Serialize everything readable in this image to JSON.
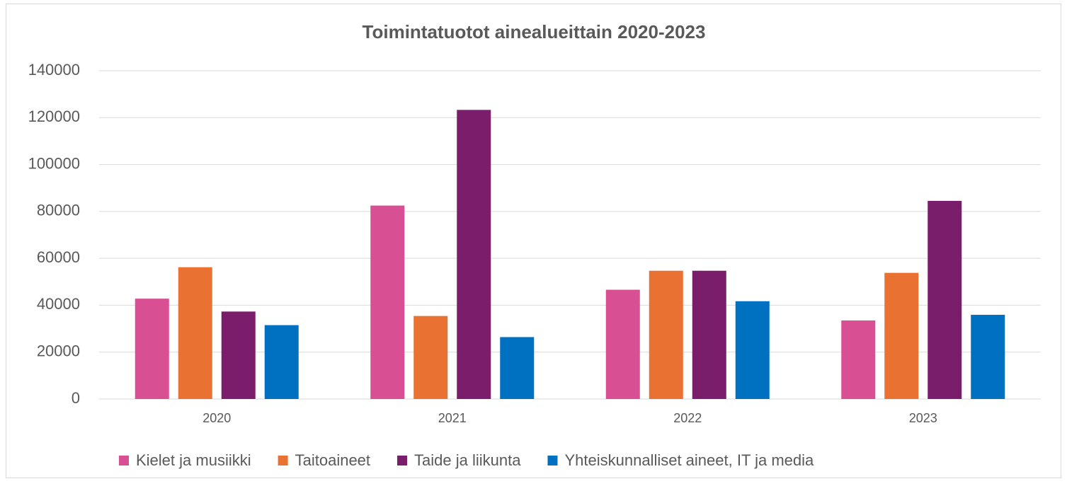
{
  "chart_data": {
    "type": "bar",
    "title": "Toimintatuotot ainealueittain 2020-2023",
    "categories": [
      "2020",
      "2021",
      "2022",
      "2023"
    ],
    "series": [
      {
        "name": "Kielet ja musiikki",
        "color": "#d94f93",
        "values": [
          42800,
          82500,
          46600,
          33500
        ]
      },
      {
        "name": "Taitoaineet",
        "color": "#e97132",
        "values": [
          56200,
          35400,
          54700,
          53800
        ]
      },
      {
        "name": "Taide ja liikunta",
        "color": "#7a1e6b",
        "values": [
          37300,
          123300,
          54700,
          84500
        ]
      },
      {
        "name": "Yhteiskunnalliset aineet, IT ja media",
        "color": "#0070c0",
        "values": [
          31500,
          26400,
          41700,
          35900
        ]
      }
    ],
    "ylim": [
      0,
      140000
    ],
    "yticks": [
      0,
      20000,
      40000,
      60000,
      80000,
      100000,
      120000,
      140000
    ],
    "grid": true,
    "legend": "bottom"
  }
}
